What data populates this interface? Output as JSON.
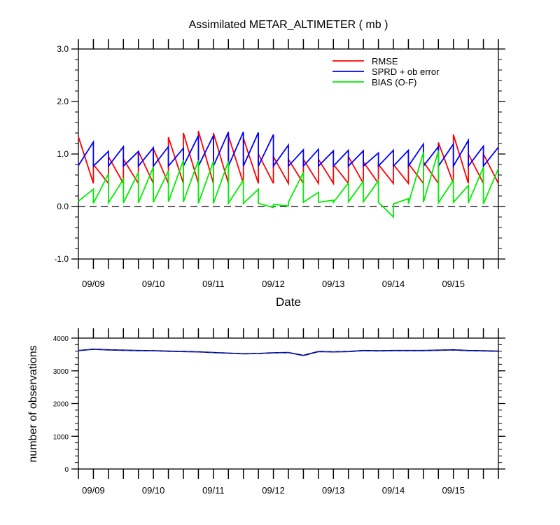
{
  "chart_data": [
    {
      "type": "line",
      "title": "Assimilated METAR_ALTIMETER ( mb )",
      "xlabel": "Date",
      "ylabel": "",
      "ylim": [
        -1.0,
        3.0
      ],
      "yticks": [
        "3.0",
        "2.0",
        "1.0",
        "0.0",
        "-1.0"
      ],
      "ytick_values": [
        3.0,
        2.0,
        1.0,
        0.0,
        -1.0
      ],
      "xticks": [
        "09/09",
        "09/10",
        "09/11",
        "09/12",
        "09/13",
        "09/14",
        "09/15"
      ],
      "xtick_values": [
        1,
        5,
        9,
        13,
        17,
        21,
        25
      ],
      "xlim": [
        0,
        28
      ],
      "zero_line": "dashed",
      "legend_position": "top-right",
      "series": [
        {
          "name": "RMSE",
          "color": "#ff0000",
          "x": [
            0,
            1,
            1,
            2,
            2,
            3,
            3,
            4,
            4,
            5,
            5,
            6,
            6,
            7,
            7,
            8,
            8,
            9,
            9,
            10,
            10,
            11,
            11,
            12,
            12,
            13,
            13,
            14,
            14,
            15,
            15,
            16,
            16,
            17,
            17,
            18,
            18,
            19,
            19,
            20,
            20,
            21,
            21,
            22,
            22,
            23,
            23,
            24,
            24,
            25,
            25,
            26,
            26,
            27,
            27,
            28
          ],
          "y": [
            1.33,
            0.44,
            0.8,
            0.44,
            0.95,
            0.44,
            0.9,
            0.44,
            1.05,
            0.44,
            1.1,
            0.44,
            1.32,
            0.44,
            1.4,
            0.44,
            1.44,
            0.44,
            1.4,
            0.44,
            1.35,
            0.44,
            1.3,
            0.44,
            1.0,
            0.44,
            0.95,
            0.44,
            0.9,
            0.44,
            0.9,
            0.44,
            0.9,
            0.44,
            0.8,
            0.44,
            0.95,
            0.44,
            0.85,
            0.44,
            0.8,
            0.44,
            0.8,
            0.44,
            0.82,
            0.44,
            0.85,
            0.44,
            1.22,
            0.44,
            1.37,
            0.44,
            1.0,
            0.44,
            1.0,
            0.44
          ]
        },
        {
          "name": "SPRD + ob error",
          "color": "#0000ff",
          "x": [
            0,
            1,
            1,
            2,
            2,
            3,
            3,
            4,
            4,
            5,
            5,
            6,
            6,
            7,
            7,
            8,
            8,
            9,
            9,
            10,
            10,
            11,
            11,
            12,
            12,
            13,
            13,
            14,
            14,
            15,
            15,
            16,
            16,
            17,
            17,
            18,
            18,
            19,
            19,
            20,
            20,
            21,
            21,
            22,
            22,
            23,
            23,
            24,
            24,
            25,
            25,
            26,
            26,
            27,
            27,
            28
          ],
          "y": [
            0.78,
            1.23,
            0.77,
            1.05,
            0.77,
            1.14,
            0.77,
            1.05,
            0.77,
            1.12,
            0.77,
            1.14,
            0.77,
            1.11,
            0.77,
            1.35,
            0.77,
            1.35,
            0.77,
            1.42,
            0.77,
            1.42,
            0.77,
            1.41,
            0.77,
            1.37,
            0.77,
            1.17,
            0.77,
            1.08,
            0.77,
            1.09,
            0.77,
            1.06,
            0.77,
            1.07,
            0.77,
            1.06,
            0.77,
            1.02,
            0.77,
            1.07,
            0.77,
            1.07,
            0.77,
            1.19,
            0.77,
            1.14,
            0.77,
            1.19,
            0.77,
            1.26,
            0.77,
            1.15,
            0.77,
            1.13
          ]
        },
        {
          "name": "BIAS (O-F)",
          "color": "#00ee00",
          "x": [
            0,
            1,
            1,
            2,
            2,
            3,
            3,
            4,
            4,
            5,
            5,
            6,
            6,
            7,
            7,
            8,
            8,
            9,
            9,
            10,
            10,
            11,
            11,
            12,
            12,
            13,
            13,
            14,
            14,
            15,
            15,
            16,
            16,
            17,
            17,
            18,
            18,
            19,
            19,
            20,
            20,
            21,
            21,
            22,
            22,
            23,
            23,
            24,
            24,
            25,
            25,
            26,
            26,
            27,
            27,
            28
          ],
          "y": [
            0.1,
            0.33,
            0.06,
            0.62,
            0.07,
            0.52,
            0.07,
            0.65,
            0.07,
            0.75,
            0.08,
            0.68,
            0.09,
            0.88,
            0.09,
            0.88,
            0.06,
            0.86,
            0.06,
            0.86,
            0.06,
            0.5,
            0.06,
            0.33,
            0.06,
            -0.02,
            0.04,
            0.01,
            0.08,
            0.65,
            0.08,
            0.27,
            0.08,
            0.12,
            0.08,
            0.45,
            0.09,
            0.48,
            0.09,
            0.49,
            0.08,
            -0.2,
            0.05,
            0.15,
            0.05,
            1.03,
            0.08,
            1.06,
            0.07,
            0.5,
            0.08,
            0.4,
            0.07,
            0.75,
            0.05,
            0.72
          ]
        }
      ]
    },
    {
      "type": "line",
      "title": "",
      "xlabel": "",
      "ylabel": "number of observations",
      "ylim": [
        0,
        4000
      ],
      "yticks": [
        "4000",
        "3000",
        "2000",
        "1000",
        "0"
      ],
      "ytick_values": [
        4000,
        3000,
        2000,
        1000,
        0
      ],
      "xticks": [
        "09/09",
        "09/10",
        "09/11",
        "09/12",
        "09/13",
        "09/14",
        "09/15"
      ],
      "xtick_values": [
        1,
        5,
        9,
        13,
        17,
        21,
        25
      ],
      "xlim": [
        0,
        28
      ],
      "series": [
        {
          "name": "",
          "color": "#000080",
          "x": [
            0,
            1,
            2,
            3,
            4,
            5,
            6,
            7,
            8,
            9,
            10,
            11,
            12,
            13,
            14,
            15,
            16,
            17,
            18,
            19,
            20,
            21,
            22,
            23,
            24,
            25,
            26,
            27,
            28
          ],
          "y": [
            3620,
            3660,
            3640,
            3630,
            3620,
            3615,
            3600,
            3590,
            3580,
            3560,
            3540,
            3520,
            3530,
            3550,
            3560,
            3470,
            3590,
            3580,
            3590,
            3620,
            3610,
            3620,
            3620,
            3620,
            3630,
            3640,
            3620,
            3610,
            3600
          ]
        }
      ]
    }
  ]
}
